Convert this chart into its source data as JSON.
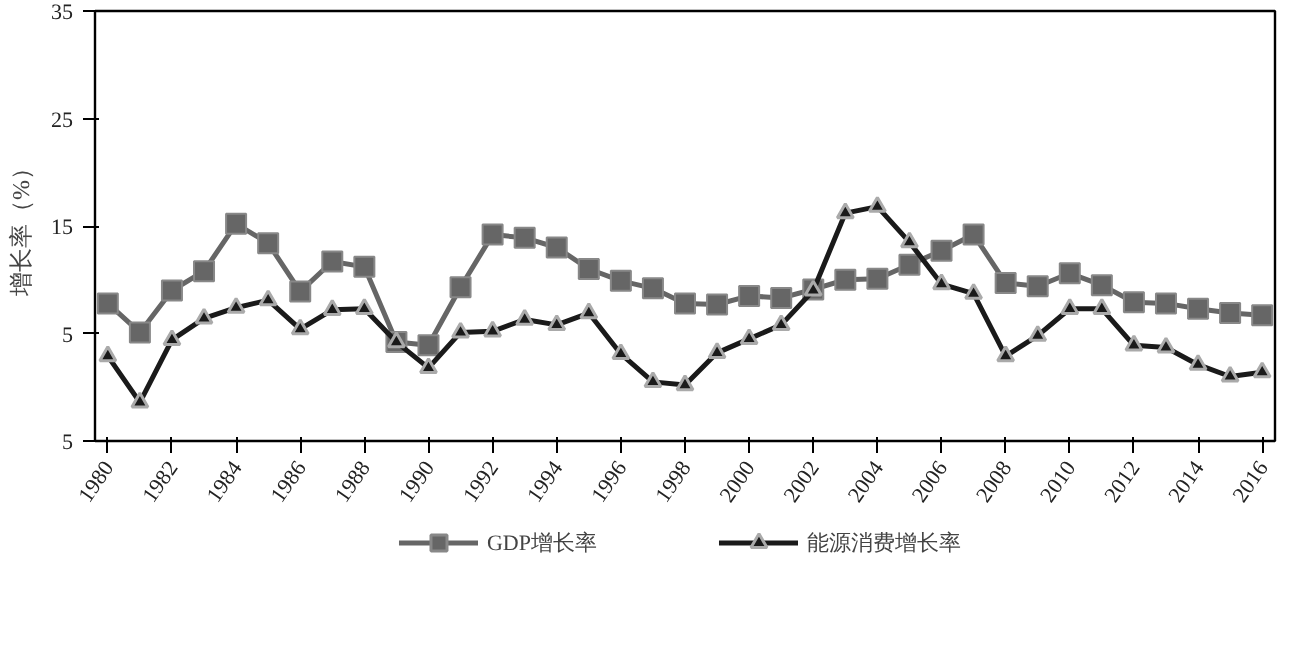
{
  "chart_data": {
    "type": "line",
    "ylabel": "增长率（%）",
    "x": [
      1980,
      1981,
      1982,
      1983,
      1984,
      1985,
      1986,
      1987,
      1988,
      1989,
      1990,
      1991,
      1992,
      1993,
      1994,
      1995,
      1996,
      1997,
      1998,
      1999,
      2000,
      2001,
      2002,
      2003,
      2004,
      2005,
      2006,
      2007,
      2008,
      2009,
      2010,
      2011,
      2012,
      2013,
      2014,
      2015,
      2016
    ],
    "series": [
      {
        "name": "GDP增长率",
        "color": "#666666",
        "marker": "square",
        "values": [
          7.8,
          5.1,
          9.0,
          10.8,
          15.2,
          13.4,
          8.9,
          11.7,
          11.2,
          4.2,
          3.9,
          9.3,
          14.2,
          13.9,
          13.0,
          11.0,
          9.9,
          9.2,
          7.8,
          7.7,
          8.5,
          8.3,
          9.1,
          10.0,
          10.1,
          11.4,
          12.7,
          14.2,
          9.7,
          9.4,
          10.6,
          9.5,
          7.9,
          7.8,
          7.3,
          6.9,
          6.7
        ]
      },
      {
        "name": "能源消费增长率",
        "color": "#1a1a1a",
        "marker": "triangle",
        "values": [
          2.9,
          -1.4,
          4.4,
          6.4,
          7.4,
          8.1,
          5.4,
          7.2,
          7.3,
          4.2,
          1.8,
          5.1,
          5.2,
          6.3,
          5.8,
          6.9,
          3.1,
          0.5,
          0.2,
          3.2,
          4.5,
          5.8,
          9.0,
          16.2,
          16.8,
          13.5,
          9.6,
          8.7,
          2.9,
          4.8,
          7.3,
          7.3,
          3.9,
          3.7,
          2.1,
          1.0,
          1.4
        ]
      }
    ],
    "xlim": [
      1979.6,
      2016.4
    ],
    "xticks": [
      1980,
      1982,
      1984,
      1986,
      1988,
      1990,
      1992,
      1994,
      1996,
      1998,
      2000,
      2002,
      2004,
      2006,
      2008,
      2010,
      2012,
      2014,
      2016
    ],
    "ylim": [
      -5,
      35
    ],
    "yticks": [
      {
        "value": -5,
        "label": "5"
      },
      5,
      15,
      25,
      35
    ],
    "grid": false,
    "legend": "bottom",
    "line_style": "solid"
  }
}
